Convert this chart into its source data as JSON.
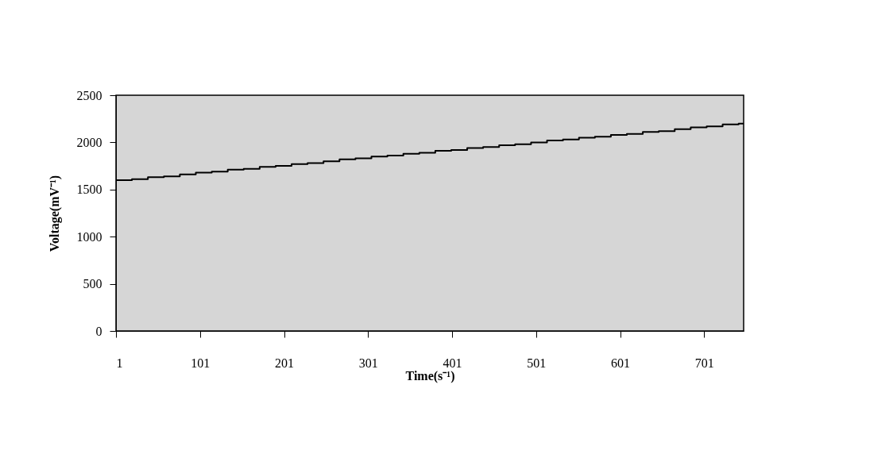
{
  "chart_data": {
    "type": "step",
    "xlabel": "Time(s⁻¹)",
    "ylabel": "Voltage(mV⁻¹)",
    "x": [
      1,
      20,
      39,
      58,
      77,
      96,
      115,
      134,
      153,
      172,
      191,
      210,
      229,
      248,
      267,
      286,
      305,
      324,
      343,
      362,
      381,
      400,
      419,
      438,
      457,
      476,
      495,
      514,
      533,
      552,
      571,
      590,
      609,
      628,
      647,
      666,
      685,
      704,
      723,
      742,
      748
    ],
    "series": [
      {
        "color": "#000000",
        "values": [
          1600,
          1610,
          1630,
          1640,
          1660,
          1680,
          1690,
          1710,
          1720,
          1740,
          1750,
          1770,
          1780,
          1800,
          1820,
          1830,
          1850,
          1860,
          1880,
          1890,
          1910,
          1920,
          1940,
          1950,
          1970,
          1980,
          2000,
          2020,
          2030,
          2050,
          2060,
          2080,
          2090,
          2110,
          2120,
          2140,
          2160,
          2170,
          2190,
          2200,
          2200
        ]
      }
    ],
    "xlim": [
      1,
      748
    ],
    "xticks": [
      1,
      101,
      201,
      301,
      401,
      501,
      601,
      701
    ],
    "ylim": [
      0,
      2500
    ],
    "yticks": [
      0,
      500,
      1000,
      1500,
      2000,
      2500
    ],
    "grid": false,
    "legend": false
  }
}
